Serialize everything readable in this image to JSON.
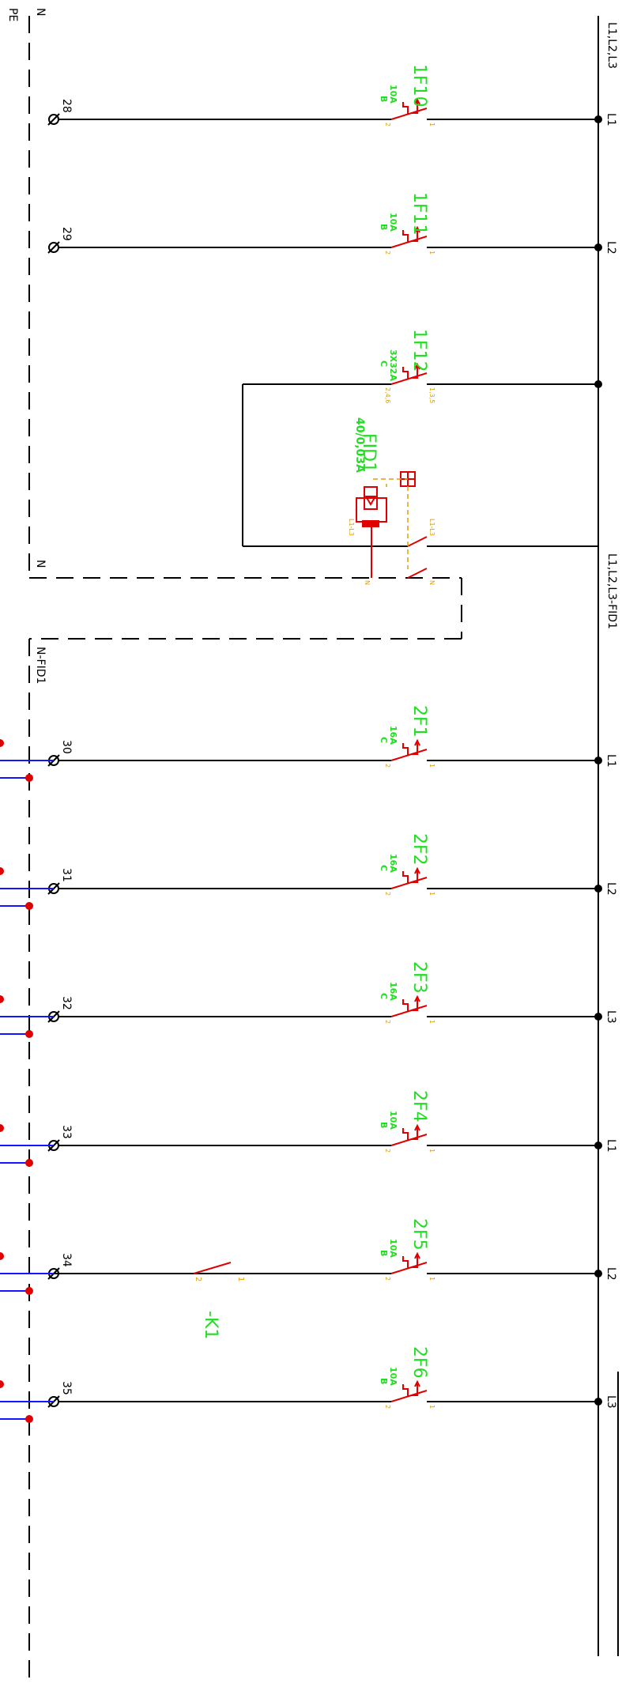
{
  "buses": {
    "main": "L1,L2,L3",
    "fid": "L1,L2,L3-FID1",
    "neutral_top": "N",
    "neutral_mid": "N",
    "neutral_fid": "N-FID1",
    "pe": "PE"
  },
  "colors": {
    "wire": "#000000",
    "breaker": "#e00000",
    "label": "#22dd22",
    "terminal_pin": "#e0a000",
    "pe_wire": "#1414ff"
  },
  "icons": [
    "terminal-icon",
    "breaker-icon",
    "rcd-icon",
    "contact-icon",
    "junction-dot-icon"
  ],
  "breakers": [
    {
      "id": "1F10",
      "rating": "10A",
      "curve": "B",
      "phase": "L1",
      "terminal": "28",
      "pin_in": "1",
      "pin_out": "2"
    },
    {
      "id": "1F11",
      "rating": "10A",
      "curve": "B",
      "phase": "L2",
      "terminal": "29",
      "pin_in": "1",
      "pin_out": "2"
    },
    {
      "id": "1F12",
      "rating": "3X32A",
      "curve": "C",
      "phase": "",
      "terminal": "",
      "pin_in": "1,3,5",
      "pin_out": "2,4,6"
    },
    {
      "id": "2F1",
      "rating": "16A",
      "curve": "C",
      "phase": "L1",
      "terminal": "30",
      "pin_in": "1",
      "pin_out": "2"
    },
    {
      "id": "2F2",
      "rating": "16A",
      "curve": "C",
      "phase": "L2",
      "terminal": "31",
      "pin_in": "1",
      "pin_out": "2"
    },
    {
      "id": "2F3",
      "rating": "16A",
      "curve": "C",
      "phase": "L3",
      "terminal": "32",
      "pin_in": "1",
      "pin_out": "2"
    },
    {
      "id": "2F4",
      "rating": "10A",
      "curve": "B",
      "phase": "L1",
      "terminal": "33",
      "pin_in": "1",
      "pin_out": "2"
    },
    {
      "id": "2F5",
      "rating": "10A",
      "curve": "B",
      "phase": "L2",
      "terminal": "34",
      "pin_in": "1",
      "pin_out": "2"
    },
    {
      "id": "2F6",
      "rating": "10A",
      "curve": "B",
      "phase": "L3",
      "terminal": "35",
      "pin_in": "1",
      "pin_out": "2"
    }
  ],
  "rcd": {
    "id": "FID1",
    "rating": "40/0,03A",
    "pin_line": "L1-L3",
    "pin_line_out": "L1-L3",
    "pin_n_in": "N",
    "pin_n_out": "N"
  },
  "contact": {
    "id": "-K1",
    "pin_in": "1",
    "pin_out": "2"
  }
}
